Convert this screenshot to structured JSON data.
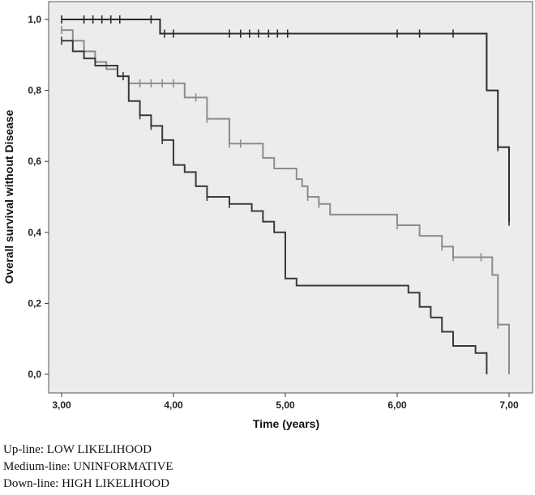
{
  "chart_data": {
    "type": "line",
    "title": "",
    "xlabel": "Time (years)",
    "ylabel": "Overall survival without Disease",
    "xlim": [
      3.0,
      7.0
    ],
    "ylim": [
      0.0,
      1.0
    ],
    "x_ticks": [
      3.0,
      4.0,
      5.0,
      6.0,
      7.0
    ],
    "x_tick_labels": [
      "3,00",
      "4,00",
      "5,00",
      "6,00",
      "7,00"
    ],
    "y_ticks": [
      0.0,
      0.2,
      0.4,
      0.6,
      0.8,
      1.0
    ],
    "y_tick_labels": [
      "0,0",
      "0,2",
      "0,4",
      "0,6",
      "0,8",
      "1,0"
    ],
    "grid": false,
    "plot_background": "#ececec",
    "series": [
      {
        "color": "#2b2b2b",
        "steps": [
          [
            3.0,
            1.0
          ],
          [
            3.88,
            0.96
          ],
          [
            6.8,
            0.8
          ],
          [
            6.9,
            0.64
          ],
          [
            7.0,
            0.43
          ]
        ],
        "censored": [
          [
            3.0,
            1.0
          ],
          [
            3.2,
            1.0
          ],
          [
            3.28,
            1.0
          ],
          [
            3.36,
            1.0
          ],
          [
            3.44,
            1.0
          ],
          [
            3.52,
            1.0
          ],
          [
            3.8,
            1.0
          ],
          [
            3.92,
            0.96
          ],
          [
            4.0,
            0.96
          ],
          [
            4.5,
            0.96
          ],
          [
            4.6,
            0.96
          ],
          [
            4.68,
            0.96
          ],
          [
            4.76,
            0.96
          ],
          [
            4.85,
            0.96
          ],
          [
            4.93,
            0.96
          ],
          [
            5.02,
            0.96
          ],
          [
            6.0,
            0.96
          ],
          [
            6.2,
            0.96
          ],
          [
            6.5,
            0.96
          ],
          [
            6.9,
            0.64
          ],
          [
            7.0,
            0.43
          ]
        ]
      },
      {
        "color": "#8c8c8c",
        "steps": [
          [
            3.0,
            0.97
          ],
          [
            3.1,
            0.94
          ],
          [
            3.2,
            0.91
          ],
          [
            3.3,
            0.88
          ],
          [
            3.4,
            0.86
          ],
          [
            3.5,
            0.84
          ],
          [
            3.6,
            0.82
          ],
          [
            4.1,
            0.78
          ],
          [
            4.3,
            0.72
          ],
          [
            4.5,
            0.65
          ],
          [
            4.8,
            0.61
          ],
          [
            4.9,
            0.58
          ],
          [
            5.1,
            0.55
          ],
          [
            5.15,
            0.53
          ],
          [
            5.2,
            0.5
          ],
          [
            5.3,
            0.48
          ],
          [
            5.4,
            0.45
          ],
          [
            6.0,
            0.42
          ],
          [
            6.2,
            0.39
          ],
          [
            6.4,
            0.36
          ],
          [
            6.5,
            0.33
          ],
          [
            6.85,
            0.28
          ],
          [
            6.9,
            0.14
          ],
          [
            7.0,
            0.0
          ]
        ],
        "censored": [
          [
            3.0,
            0.97
          ],
          [
            3.55,
            0.84
          ],
          [
            3.7,
            0.82
          ],
          [
            3.8,
            0.82
          ],
          [
            3.9,
            0.82
          ],
          [
            4.0,
            0.82
          ],
          [
            4.2,
            0.78
          ],
          [
            4.3,
            0.72
          ],
          [
            4.5,
            0.65
          ],
          [
            4.6,
            0.65
          ],
          [
            5.2,
            0.5
          ],
          [
            5.3,
            0.48
          ],
          [
            6.0,
            0.42
          ],
          [
            6.4,
            0.36
          ],
          [
            6.5,
            0.33
          ],
          [
            6.75,
            0.33
          ],
          [
            6.9,
            0.14
          ]
        ]
      },
      {
        "color": "#3a3a3a",
        "steps": [
          [
            3.0,
            0.94
          ],
          [
            3.1,
            0.91
          ],
          [
            3.2,
            0.89
          ],
          [
            3.3,
            0.87
          ],
          [
            3.5,
            0.84
          ],
          [
            3.6,
            0.77
          ],
          [
            3.7,
            0.73
          ],
          [
            3.8,
            0.7
          ],
          [
            3.9,
            0.66
          ],
          [
            4.0,
            0.59
          ],
          [
            4.1,
            0.57
          ],
          [
            4.2,
            0.53
          ],
          [
            4.3,
            0.5
          ],
          [
            4.5,
            0.48
          ],
          [
            4.7,
            0.46
          ],
          [
            4.8,
            0.43
          ],
          [
            4.9,
            0.4
          ],
          [
            5.0,
            0.27
          ],
          [
            5.1,
            0.25
          ],
          [
            6.1,
            0.23
          ],
          [
            6.2,
            0.19
          ],
          [
            6.3,
            0.16
          ],
          [
            6.4,
            0.12
          ],
          [
            6.5,
            0.08
          ],
          [
            6.7,
            0.06
          ],
          [
            6.8,
            0.0
          ]
        ],
        "censored": [
          [
            3.0,
            0.94
          ],
          [
            3.55,
            0.84
          ],
          [
            3.7,
            0.73
          ],
          [
            3.8,
            0.7
          ],
          [
            3.9,
            0.66
          ],
          [
            4.3,
            0.5
          ],
          [
            4.5,
            0.48
          ]
        ]
      }
    ]
  },
  "captions": {
    "line1": "Up-line: LOW LIKELIHOOD",
    "line2": "Medium-line: UNINFORMATIVE",
    "line3": "Down-line: HIGH LIKELIHOOD"
  }
}
